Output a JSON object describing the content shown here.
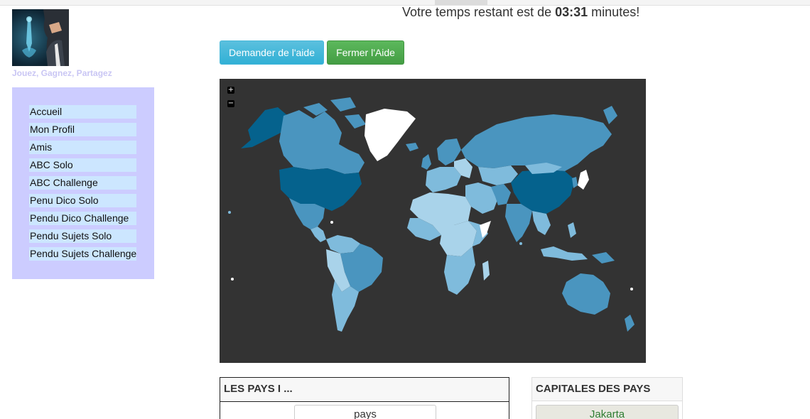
{
  "header": {
    "timer_prefix": "Votre temps restant est de ",
    "timer_value": "03:31",
    "timer_suffix": " minutes!"
  },
  "brand": {
    "tagline": "Jouez, Gagnez, Partagez",
    "logo_icon": "businessman-touchscreen-logo"
  },
  "sidebar": {
    "items": [
      {
        "label": "Accueil"
      },
      {
        "label": "Mon Profil"
      },
      {
        "label": "Amis"
      },
      {
        "label": "ABC Solo"
      },
      {
        "label": "ABC Challenge"
      },
      {
        "label": "Penu Dico Solo"
      },
      {
        "label": "Pendu Dico Challenge"
      },
      {
        "label": "Pendu Sujets Solo"
      },
      {
        "label": "Pendu Sujets Challenge"
      }
    ]
  },
  "actions": {
    "help_label": "Demander de l'aide",
    "close_help_label": "Fermer l'Aide"
  },
  "map": {
    "zoom_in": "+",
    "zoom_out": "−",
    "colors": {
      "background": "#333333",
      "darkest": "#05628d",
      "dark": "#2d7eac",
      "medium": "#4a95bf",
      "light": "#7fbbdc",
      "lightest": "#a9d3ea",
      "highlight": "#ffffff"
    }
  },
  "panels": {
    "countries_title": "LES PAYS I ...",
    "countries_header": "pays",
    "capitals_title": "CAPITALES DES PAYS",
    "capital_item": "Jakarta"
  },
  "colors": {
    "sidebar_bg": "#ccccff",
    "sidebar_item_bg": "#cce6ff",
    "help_button": "#5bc0de",
    "close_button": "#5cb85c",
    "capital_text": "#2e7d32"
  }
}
